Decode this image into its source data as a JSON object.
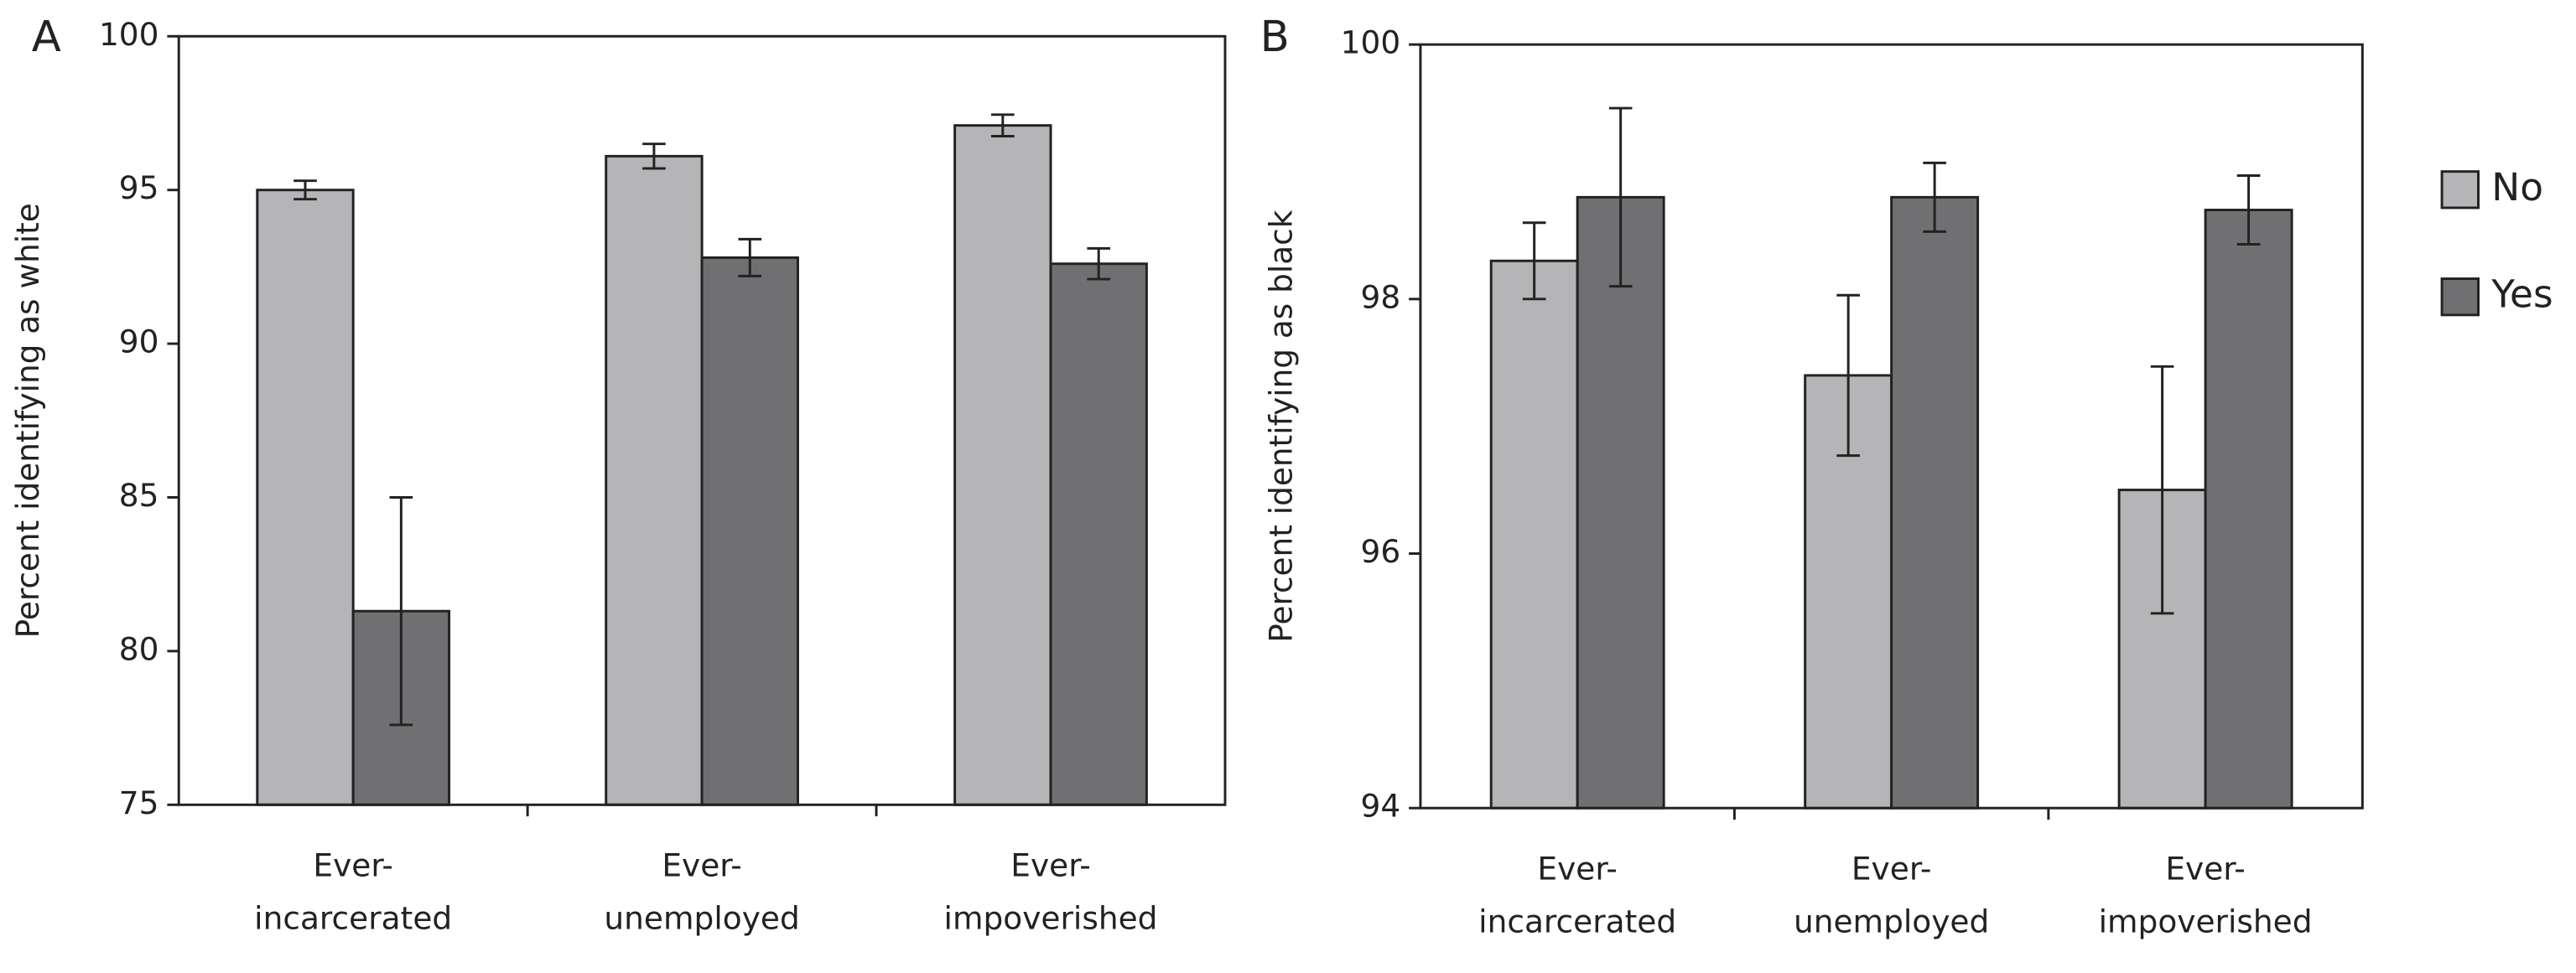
{
  "chart_data": [
    {
      "type": "bar",
      "panel_label": "A",
      "y_label": "Percent identifying as white",
      "categories": [
        [
          "Ever-",
          "incarcerated"
        ],
        [
          "Ever-",
          "unemployed"
        ],
        [
          "Ever-",
          "impoverished"
        ]
      ],
      "series": [
        {
          "name": "No",
          "color": "#b5b5b7",
          "values": [
            95.0,
            96.1,
            97.1
          ],
          "errors": [
            0.3,
            0.4,
            0.35
          ]
        },
        {
          "name": "Yes",
          "color": "#707073",
          "values": [
            81.3,
            92.8,
            92.6
          ],
          "errors": [
            3.7,
            0.6,
            0.5
          ]
        }
      ],
      "ylim": [
        75,
        100
      ],
      "yticks": [
        75,
        80,
        85,
        90,
        95,
        100
      ],
      "show_legend": false
    },
    {
      "type": "bar",
      "panel_label": "B",
      "y_label": "Percent identifying as black",
      "categories": [
        [
          "Ever-",
          "incarcerated"
        ],
        [
          "Ever-",
          "unemployed"
        ],
        [
          "Ever-",
          "impoverished"
        ]
      ],
      "series": [
        {
          "name": "No",
          "color": "#b5b5b7",
          "values": [
            98.3,
            97.4,
            96.5
          ],
          "errors": [
            0.3,
            0.63,
            0.97
          ]
        },
        {
          "name": "Yes",
          "color": "#707073",
          "values": [
            98.8,
            98.8,
            98.7
          ],
          "errors": [
            0.7,
            0.27,
            0.27
          ]
        }
      ],
      "ylim": [
        94,
        100
      ],
      "yticks": [
        94,
        96,
        98,
        100
      ],
      "show_legend": true,
      "legend": "right"
    }
  ]
}
